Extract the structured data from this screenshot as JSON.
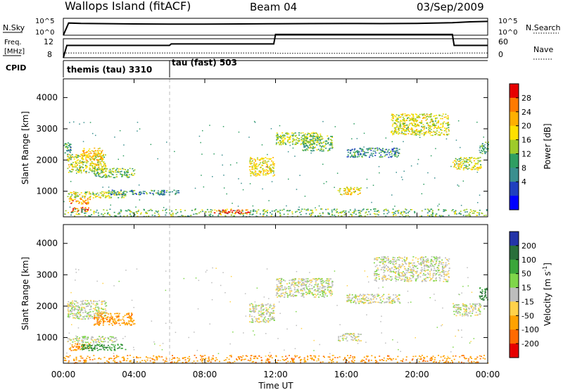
{
  "header": {
    "station": "Wallops Island (fitACF)",
    "beam": "Beam 04",
    "date": "03/Sep/2009"
  },
  "left_labels": {
    "nsky": "N.Sky",
    "freq_line1": "Freq.",
    "freq_line2": "[MHz]",
    "cpid": "CPID"
  },
  "right_labels": {
    "nsearch": "N.Search",
    "nave": "Nave"
  },
  "nsky_panel": {
    "left_ticks": [
      "10^5",
      "10^0"
    ],
    "right_ticks": [
      "10^5",
      "10^0"
    ]
  },
  "freq_panel": {
    "left_ticks": [
      "12",
      "8"
    ],
    "right_ticks": [
      "60",
      "0"
    ]
  },
  "cpid_panel": {
    "segments": [
      {
        "label": "themis (tau) 3310",
        "start_hour": 0,
        "end_hour": 6
      },
      {
        "label": "tau (fast) 503",
        "start_hour": 6,
        "end_hour": 24
      }
    ]
  },
  "xaxis": {
    "label": "Time UT",
    "ticks": [
      "00:00",
      "04:00",
      "08:00",
      "12:00",
      "16:00",
      "20:00",
      "00:00"
    ],
    "range_hours": [
      0,
      24
    ]
  },
  "power_colorbar": {
    "label": "Power [dB]",
    "ticks": [
      "28",
      "24",
      "20",
      "16",
      "12",
      "8",
      "4"
    ],
    "colors": [
      "#e60000",
      "#ff7a00",
      "#ffb000",
      "#ffe000",
      "#9ecb2a",
      "#2f9e62",
      "#3a8f8f",
      "#1f3fbf",
      "#0000ff"
    ]
  },
  "velocity_colorbar": {
    "label": "Velocity [m s^-1]",
    "ticks": [
      "200",
      "100",
      "50",
      "15",
      "-15",
      "-50",
      "-100",
      "-200"
    ],
    "colors": [
      "#2434a8",
      "#2a6f3a",
      "#3aa63a",
      "#7fd64a",
      "#bdbdbd",
      "#ffd24a",
      "#ffa200",
      "#ff6a00",
      "#e60000"
    ]
  },
  "chart_data": [
    {
      "type": "line",
      "title": "N.Sky",
      "x_label": "",
      "y_scale": "log",
      "y_ticks": [
        "10^0",
        "10^5"
      ],
      "x_range_hours": [
        0,
        24
      ],
      "series": [
        {
          "name": "N.Sky",
          "x": [
            0,
            0.3,
            1,
            2,
            3,
            4,
            6,
            8,
            10,
            12,
            14,
            16,
            18,
            20,
            22,
            23,
            24
          ],
          "y": [
            1,
            4000,
            3000,
            2800,
            2500,
            2200,
            2000,
            2000,
            2200,
            2500,
            2700,
            2900,
            2700,
            3000,
            5000,
            9000,
            12000
          ]
        }
      ]
    },
    {
      "type": "line",
      "title": "Freq. [MHz] / Nave",
      "y_range_left": [
        8,
        12
      ],
      "y_range_right": [
        0,
        60
      ],
      "x_range_hours": [
        0,
        24
      ],
      "series": [
        {
          "name": "Freq.",
          "x": [
            0,
            0.2,
            6,
            6.1,
            11.9,
            12,
            22,
            22.1,
            24
          ],
          "y": [
            8,
            10.6,
            10.6,
            10.9,
            10.9,
            12.9,
            12.9,
            10.6,
            10.6
          ]
        },
        {
          "name": "Nave",
          "x": [
            0,
            12,
            12,
            22,
            22,
            24
          ],
          "y": [
            15,
            15,
            14,
            14,
            15,
            15
          ]
        }
      ]
    },
    {
      "type": "heatmap",
      "title": "",
      "ylabel": "Slant Range [km]",
      "xlabel": "Time UT",
      "colorbar_label": "Power [dB]",
      "y_ticks": [
        1000,
        2000,
        3000,
        4000
      ],
      "y_range_km": [
        180,
        4600
      ],
      "x_range_hours": [
        0,
        24
      ],
      "echo_regions": [
        {
          "t0": 0.0,
          "t1": 0.4,
          "r0": 2200,
          "r1": 2600,
          "value_db": 10
        },
        {
          "t0": 0.2,
          "t1": 2.4,
          "r0": 1600,
          "r1": 2200,
          "value_db": 16
        },
        {
          "t0": 1.0,
          "t1": 2.2,
          "r0": 2000,
          "r1": 2400,
          "value_db": 20
        },
        {
          "t0": 1.7,
          "t1": 4.0,
          "r0": 1450,
          "r1": 1750,
          "value_db": 12
        },
        {
          "t0": 0.2,
          "t1": 3.5,
          "r0": 800,
          "r1": 1000,
          "value_db": 16
        },
        {
          "t0": 0.3,
          "t1": 1.5,
          "r0": 600,
          "r1": 800,
          "value_db": 22
        },
        {
          "t0": 0.4,
          "t1": 1.5,
          "r0": 350,
          "r1": 500,
          "value_db": 26
        },
        {
          "t0": 2.5,
          "t1": 6.5,
          "r0": 900,
          "r1": 1050,
          "value_db": 8
        },
        {
          "t0": 0.0,
          "t1": 24.0,
          "r0": 200,
          "r1": 450,
          "value_db": 12
        },
        {
          "t0": 8.5,
          "t1": 10.5,
          "r0": 280,
          "r1": 420,
          "value_db": 26
        },
        {
          "t0": 10.5,
          "t1": 11.9,
          "r0": 1500,
          "r1": 2100,
          "value_db": 18
        },
        {
          "t0": 12.0,
          "t1": 14.5,
          "r0": 2500,
          "r1": 2900,
          "value_db": 14
        },
        {
          "t0": 13.5,
          "t1": 15.2,
          "r0": 2300,
          "r1": 2800,
          "value_db": 12
        },
        {
          "t0": 15.5,
          "t1": 16.8,
          "r0": 900,
          "r1": 1150,
          "value_db": 18
        },
        {
          "t0": 16.0,
          "t1": 19.0,
          "r0": 2100,
          "r1": 2400,
          "value_db": 8
        },
        {
          "t0": 18.5,
          "t1": 21.8,
          "r0": 2800,
          "r1": 3500,
          "value_db": 16
        },
        {
          "t0": 22.0,
          "t1": 23.6,
          "r0": 1700,
          "r1": 2100,
          "value_db": 16
        },
        {
          "t0": 23.5,
          "t1": 24.0,
          "r0": 2200,
          "r1": 2600,
          "value_db": 10
        }
      ]
    },
    {
      "type": "heatmap",
      "title": "",
      "ylabel": "Slant Range [km]",
      "xlabel": "Time UT",
      "colorbar_label": "Velocity [m s^-1]",
      "y_ticks": [
        1000,
        2000,
        3000,
        4000
      ],
      "y_range_km": [
        180,
        4600
      ],
      "x_range_hours": [
        0,
        24
      ],
      "echo_regions": [
        {
          "t0": 0.2,
          "t1": 2.4,
          "r0": 1600,
          "r1": 2200,
          "value_ms": 0
        },
        {
          "t0": 1.7,
          "t1": 4.0,
          "r0": 1400,
          "r1": 1800,
          "value_ms": -60
        },
        {
          "t0": 0.3,
          "t1": 1.5,
          "r0": 600,
          "r1": 850,
          "value_ms": -60
        },
        {
          "t0": 1.0,
          "t1": 3.5,
          "r0": 600,
          "r1": 800,
          "value_ms": 60
        },
        {
          "t0": 0.2,
          "t1": 3.0,
          "r0": 850,
          "r1": 1050,
          "value_ms": 0
        },
        {
          "t0": 0.0,
          "t1": 24.0,
          "r0": 200,
          "r1": 450,
          "value_ms": -60
        },
        {
          "t0": 10.5,
          "t1": 11.9,
          "r0": 1500,
          "r1": 2100,
          "value_ms": 0
        },
        {
          "t0": 12.0,
          "t1": 15.2,
          "r0": 2300,
          "r1": 2900,
          "value_ms": 0
        },
        {
          "t0": 15.5,
          "t1": 16.8,
          "r0": 900,
          "r1": 1150,
          "value_ms": 0
        },
        {
          "t0": 16.0,
          "t1": 19.0,
          "r0": 2100,
          "r1": 2400,
          "value_ms": 0
        },
        {
          "t0": 17.5,
          "t1": 21.8,
          "r0": 2800,
          "r1": 3600,
          "value_ms": 0
        },
        {
          "t0": 22.0,
          "t1": 23.6,
          "r0": 1700,
          "r1": 2100,
          "value_ms": 0
        },
        {
          "t0": 23.5,
          "t1": 24.0,
          "r0": 2200,
          "r1": 2600,
          "value_ms": 80
        }
      ]
    }
  ]
}
